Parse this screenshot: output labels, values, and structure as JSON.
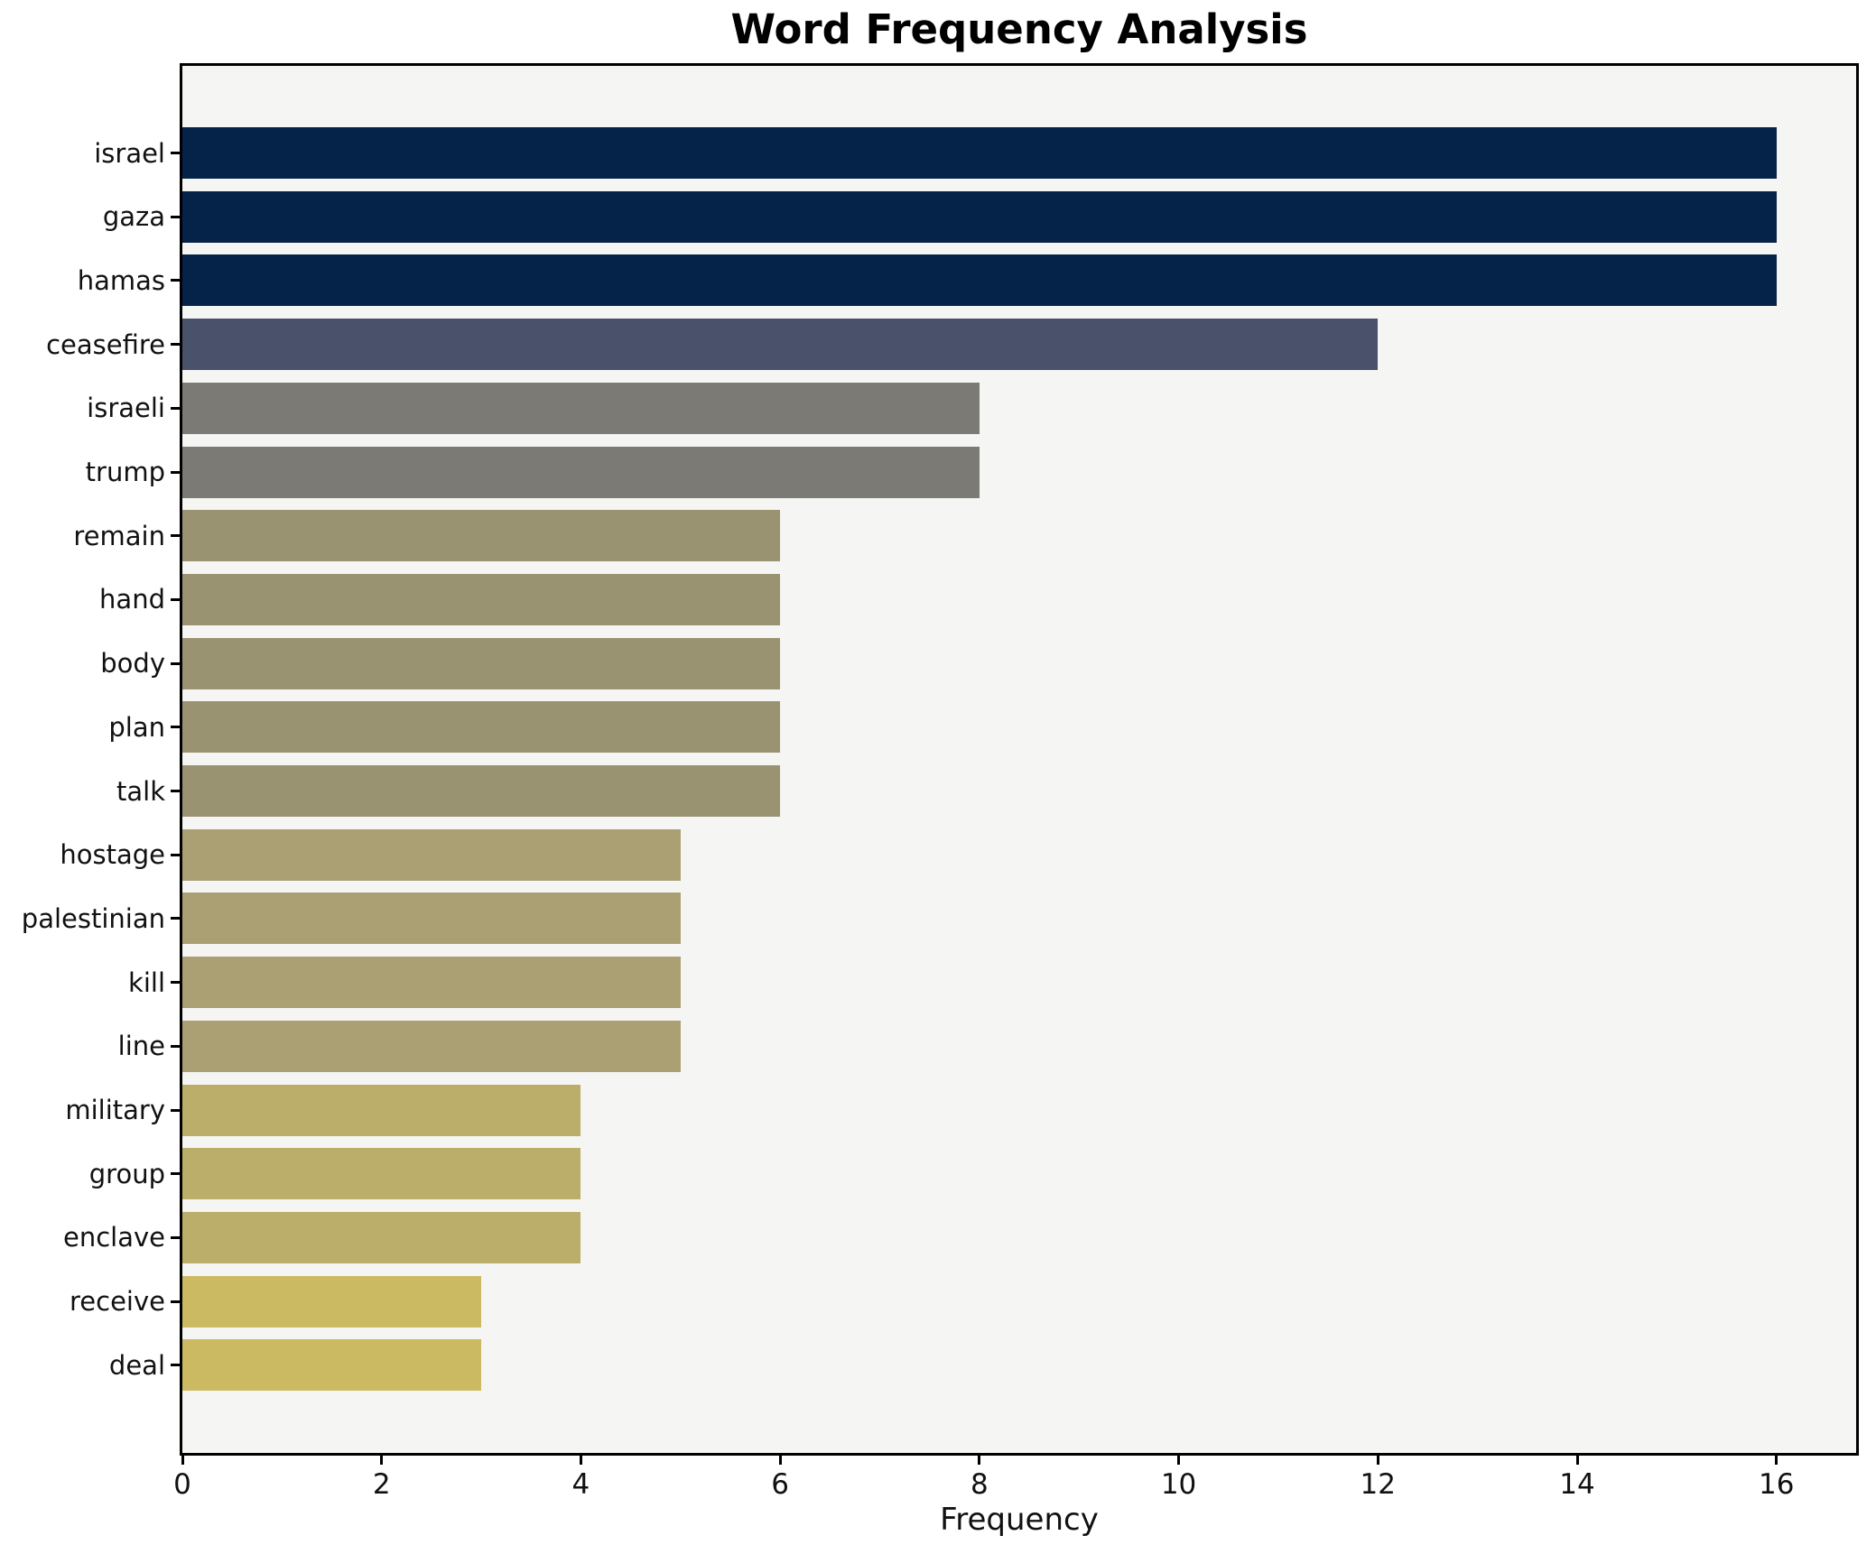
{
  "chart_data": {
    "type": "bar",
    "orientation": "horizontal",
    "title": "Word Frequency Analysis",
    "xlabel": "Frequency",
    "ylabel": "",
    "categories": [
      "israel",
      "gaza",
      "hamas",
      "ceasefire",
      "israeli",
      "trump",
      "remain",
      "hand",
      "body",
      "plan",
      "talk",
      "hostage",
      "palestinian",
      "kill",
      "line",
      "military",
      "group",
      "enclave",
      "receive",
      "deal"
    ],
    "values": [
      16,
      16,
      16,
      12,
      8,
      8,
      6,
      6,
      6,
      6,
      6,
      5,
      5,
      5,
      5,
      4,
      4,
      4,
      3,
      3
    ],
    "bar_colors": [
      "#052348",
      "#052348",
      "#052348",
      "#4a526b",
      "#7b7a74",
      "#7b7a74",
      "#9a9372",
      "#9a9372",
      "#9a9372",
      "#9a9372",
      "#9a9372",
      "#aaa074",
      "#aaa074",
      "#aaa074",
      "#aaa074",
      "#bbad6a",
      "#bbad6a",
      "#bbad6a",
      "#ccba62",
      "#ccba62"
    ],
    "x_ticks": [
      0,
      2,
      4,
      6,
      8,
      10,
      12,
      14,
      16
    ],
    "xlim": [
      0,
      16.8
    ],
    "grid": false,
    "legend": null,
    "colors": {
      "plot_background": "#f5f5f3",
      "figure_background": "#ffffff",
      "axis": "#000000",
      "text": "#111111"
    }
  }
}
